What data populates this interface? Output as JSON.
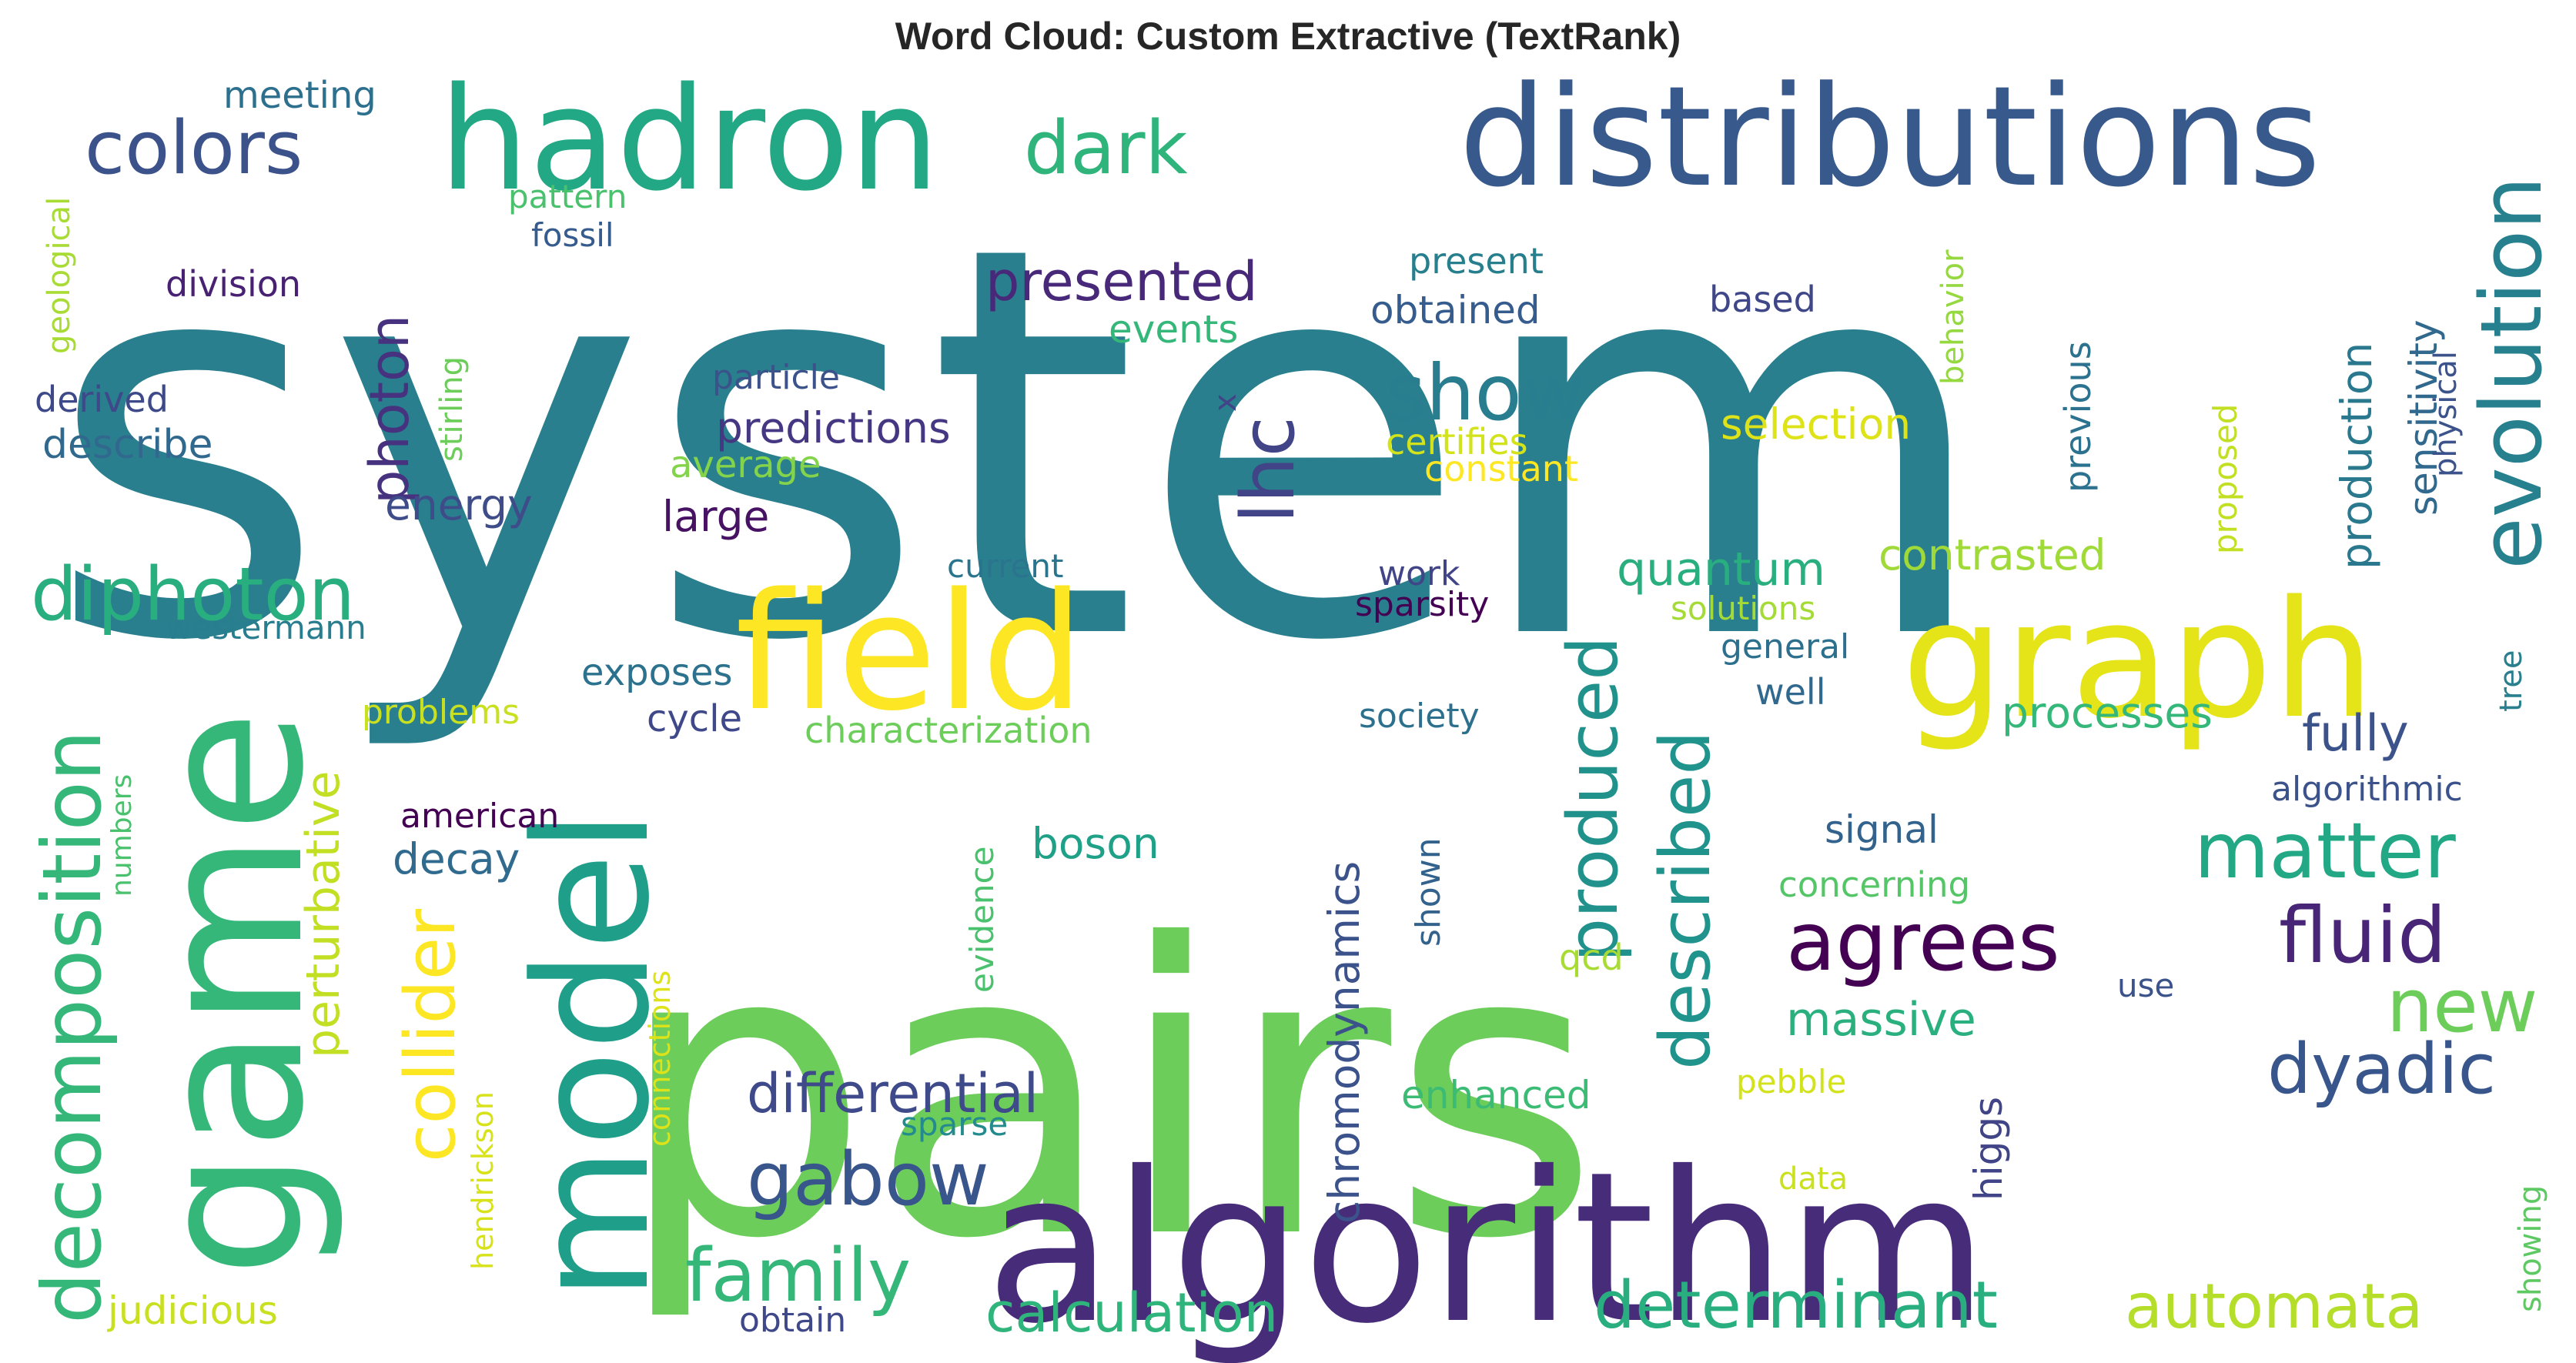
{
  "title": "Word Cloud: Custom Extractive (TextRank)",
  "palette": "viridis",
  "words": [
    {
      "text": "system",
      "color": "#2a7f8e"
    },
    {
      "text": "pairs",
      "color": "#6ccd5a"
    },
    {
      "text": "algorithm",
      "color": "#472c7a"
    },
    {
      "text": "game",
      "color": "#35b779"
    },
    {
      "text": "model",
      "color": "#1f9e89"
    },
    {
      "text": "field",
      "color": "#fde725"
    },
    {
      "text": "graph",
      "color": "#e5e419"
    },
    {
      "text": "hadron",
      "color": "#22a884"
    },
    {
      "text": "distributions",
      "color": "#38598c"
    },
    {
      "text": "evolution",
      "color": "#27808e"
    },
    {
      "text": "decomposition",
      "color": "#35b779"
    },
    {
      "text": "diphoton",
      "color": "#29af7f"
    },
    {
      "text": "colors",
      "color": "#3b528b"
    },
    {
      "text": "dark",
      "color": "#2fb47c"
    },
    {
      "text": "show",
      "color": "#287d8e"
    },
    {
      "text": "agrees",
      "color": "#440154"
    },
    {
      "text": "fluid",
      "color": "#482576"
    },
    {
      "text": "matter",
      "color": "#22a884"
    },
    {
      "text": "new",
      "color": "#6ccd5a"
    },
    {
      "text": "dyadic",
      "color": "#39568c"
    },
    {
      "text": "gabow",
      "color": "#39568c"
    },
    {
      "text": "family",
      "color": "#35b779"
    },
    {
      "text": "determinant",
      "color": "#29af7f"
    },
    {
      "text": "automata",
      "color": "#b5de2b"
    },
    {
      "text": "calculation",
      "color": "#2fb47c"
    },
    {
      "text": "differential",
      "color": "#3e4a89"
    },
    {
      "text": "described",
      "color": "#20938c"
    },
    {
      "text": "produced",
      "color": "#21918c"
    },
    {
      "text": "collider",
      "color": "#fde725"
    },
    {
      "text": "chromodynamics",
      "color": "#3b528b"
    },
    {
      "text": "lhc",
      "color": "#414487"
    },
    {
      "text": "photon",
      "color": "#46327e"
    },
    {
      "text": "presented",
      "color": "#482878"
    },
    {
      "text": "predictions",
      "color": "#453781"
    },
    {
      "text": "production",
      "color": "#2a788e"
    },
    {
      "text": "sensitivity",
      "color": "#31688e"
    },
    {
      "text": "fully",
      "color": "#3b528b"
    },
    {
      "text": "perturbative",
      "color": "#c2df23"
    },
    {
      "text": "quantum",
      "color": "#29af7f"
    },
    {
      "text": "massive",
      "color": "#2ab07f"
    },
    {
      "text": "obtained",
      "color": "#365c8d"
    },
    {
      "text": "selection",
      "color": "#dde318"
    },
    {
      "text": "contrasted",
      "color": "#a0da39"
    },
    {
      "text": "processes",
      "color": "#35b779"
    },
    {
      "text": "events",
      "color": "#35b779"
    },
    {
      "text": "energy",
      "color": "#3e4c8a"
    },
    {
      "text": "large",
      "color": "#471164"
    },
    {
      "text": "decay",
      "color": "#306a8e"
    },
    {
      "text": "boson",
      "color": "#1fa187"
    },
    {
      "text": "signal",
      "color": "#33638d"
    },
    {
      "text": "concerning",
      "color": "#55c667"
    },
    {
      "text": "enhanced",
      "color": "#3cbb75"
    },
    {
      "text": "judicious",
      "color": "#c8e020"
    },
    {
      "text": "meeting",
      "color": "#2d708e"
    },
    {
      "text": "pattern",
      "color": "#4ac16d"
    },
    {
      "text": "fossil",
      "color": "#365c8d"
    },
    {
      "text": "division",
      "color": "#482173"
    },
    {
      "text": "derived",
      "color": "#3e4989"
    },
    {
      "text": "describe",
      "color": "#31688e"
    },
    {
      "text": "geological",
      "color": "#a8db34"
    },
    {
      "text": "stirling",
      "color": "#6ccd5a"
    },
    {
      "text": "particle",
      "color": "#3b528b"
    },
    {
      "text": "average",
      "color": "#84d44b"
    },
    {
      "text": "present",
      "color": "#277f8e"
    },
    {
      "text": "based",
      "color": "#3f4788"
    },
    {
      "text": "certifies",
      "color": "#d2e21b"
    },
    {
      "text": "constant",
      "color": "#fde725"
    },
    {
      "text": "behavior",
      "color": "#95d840"
    },
    {
      "text": "physical",
      "color": "#3b528b"
    },
    {
      "text": "previous",
      "color": "#2c728e"
    },
    {
      "text": "proposed",
      "color": "#c2df23"
    },
    {
      "text": "current",
      "color": "#2b748e"
    },
    {
      "text": "work",
      "color": "#414487"
    },
    {
      "text": "sparsity",
      "color": "#440154"
    },
    {
      "text": "solutions",
      "color": "#a5db36"
    },
    {
      "text": "general",
      "color": "#2d708e"
    },
    {
      "text": "westermann",
      "color": "#287d8e"
    },
    {
      "text": "exposes",
      "color": "#2c728e"
    },
    {
      "text": "problems",
      "color": "#c8e020"
    },
    {
      "text": "cycle",
      "color": "#3f4889"
    },
    {
      "text": "characterization",
      "color": "#6ccd5a"
    },
    {
      "text": "society",
      "color": "#2d708e"
    },
    {
      "text": "well",
      "color": "#31688e"
    },
    {
      "text": "tree",
      "color": "#2a7f8e"
    },
    {
      "text": "algorithmic",
      "color": "#3b528b"
    },
    {
      "text": "american",
      "color": "#440154"
    },
    {
      "text": "numbers",
      "color": "#4ac16d"
    },
    {
      "text": "evidence",
      "color": "#4ac16d"
    },
    {
      "text": "shown",
      "color": "#33638d"
    },
    {
      "text": "qcd",
      "color": "#a8db34"
    },
    {
      "text": "use",
      "color": "#3b528b"
    },
    {
      "text": "connections",
      "color": "#dde318"
    },
    {
      "text": "hendrickson",
      "color": "#d8e219"
    },
    {
      "text": "sparse",
      "color": "#238a8d"
    },
    {
      "text": "pebble",
      "color": "#d2e21b"
    },
    {
      "text": "higgs",
      "color": "#414487"
    },
    {
      "text": "data",
      "color": "#cae11f"
    },
    {
      "text": "showing",
      "color": "#5ec962"
    },
    {
      "text": "obtain",
      "color": "#3f4889"
    },
    {
      "text": "x",
      "color": "#414487"
    }
  ]
}
